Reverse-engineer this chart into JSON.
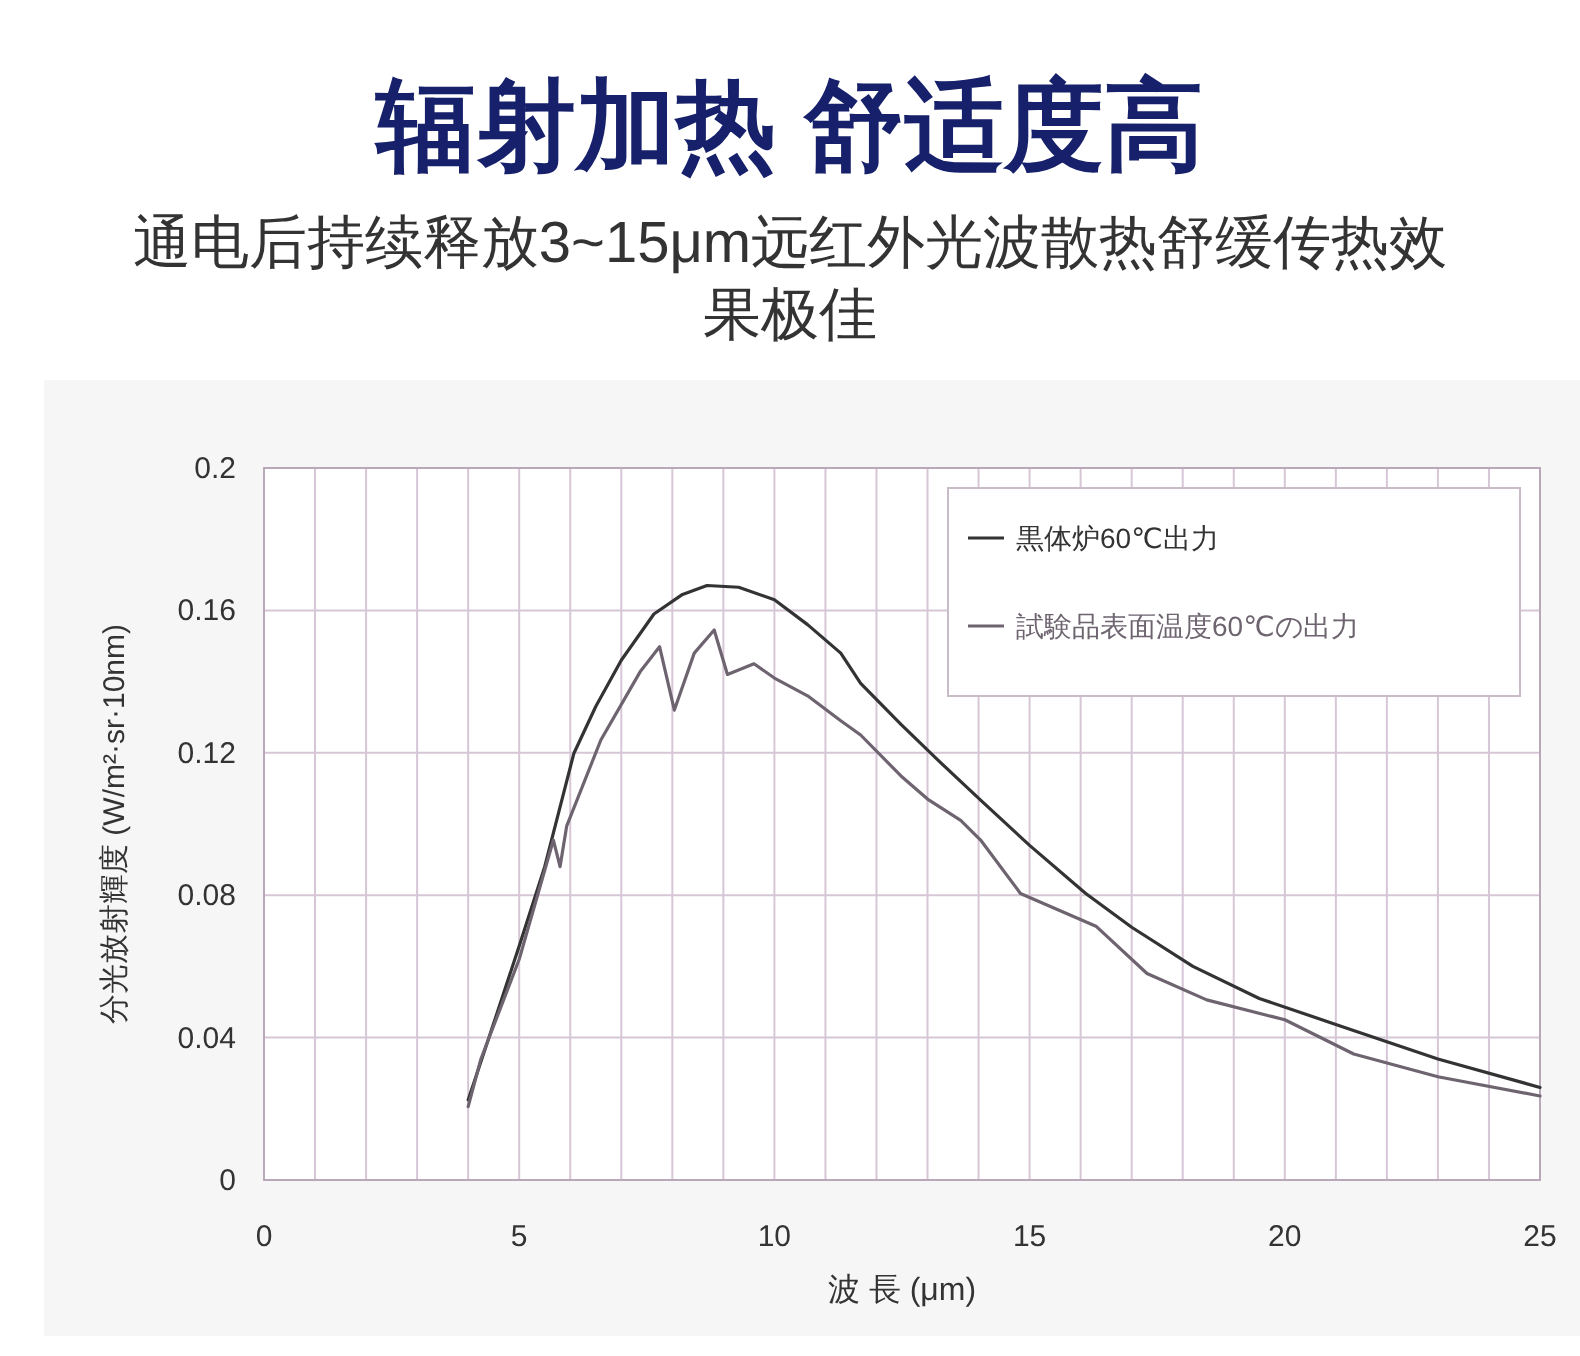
{
  "chart_data": {
    "type": "line",
    "title": "辐射加热 舒适度高",
    "subtitle": "通电后持续释放3~15μm远红外光波散热舒缓传热效果极佳",
    "xlabel": "波 長 (μm)",
    "ylabel": "分光放射輝度 (W/m²·sr·10nm)",
    "xlim": [
      0,
      25
    ],
    "ylim": [
      0,
      0.2
    ],
    "xticks": [
      0,
      {
        "value": 1,
        "label": null
      },
      {
        "value": 2,
        "label": null
      },
      {
        "value": 3,
        "label": null
      },
      {
        "value": 4,
        "label": null
      },
      5,
      {
        "value": 6,
        "label": null
      },
      {
        "value": 7,
        "label": null
      },
      {
        "value": 8,
        "label": null
      },
      {
        "value": 9,
        "label": null
      },
      10,
      {
        "value": 11,
        "label": null
      },
      {
        "value": 12,
        "label": null
      },
      {
        "value": 13,
        "label": null
      },
      {
        "value": 14,
        "label": null
      },
      15,
      {
        "value": 16,
        "label": null
      },
      {
        "value": 17,
        "label": null
      },
      {
        "value": 18,
        "label": null
      },
      {
        "value": 19,
        "label": null
      },
      20,
      {
        "value": 21,
        "label": null
      },
      {
        "value": 22,
        "label": null
      },
      {
        "value": 23,
        "label": null
      },
      {
        "value": 24,
        "label": null
      },
      25
    ],
    "yticks": [
      0,
      0.04,
      0.08,
      0.12,
      0.16,
      0.2
    ],
    "grid": true,
    "legend": "top right",
    "line_style": "solid",
    "marker": "none",
    "series": [
      {
        "name": "黒体炉60℃出力",
        "color": "#333333",
        "x": [
          4,
          4.5,
          5,
          5.5,
          6.07,
          6.5,
          7,
          7.64,
          8.2,
          8.68,
          9.3,
          10,
          10.65,
          11.3,
          11.69,
          12.48,
          13.2,
          14.04,
          15,
          16.1,
          17,
          18.2,
          19.5,
          21.1,
          23,
          25
        ],
        "values": [
          0.0225,
          0.044,
          0.0657,
          0.088,
          0.1198,
          0.133,
          0.146,
          0.159,
          0.1645,
          0.167,
          0.1665,
          0.163,
          0.156,
          0.148,
          0.1395,
          0.128,
          0.118,
          0.1067,
          0.094,
          0.0805,
          0.071,
          0.06,
          0.051,
          0.0432,
          0.034,
          0.026
        ]
      },
      {
        "name": "試験品表面温度60℃の出力",
        "color": "#6e6470",
        "x": [
          4,
          4.25,
          5,
          5.67,
          5.8,
          5.93,
          6.6,
          7.38,
          7.75,
          8.04,
          8.43,
          8.82,
          9.08,
          9.6,
          10,
          10.65,
          11.3,
          11.69,
          12.48,
          13,
          13.65,
          14.04,
          14.82,
          16.3,
          17.3,
          18.47,
          20,
          21.35,
          23,
          25
        ],
        "values": [
          0.0206,
          0.034,
          0.062,
          0.0955,
          0.088,
          0.0994,
          0.1236,
          0.143,
          0.1498,
          0.132,
          0.148,
          0.1545,
          0.142,
          0.145,
          0.141,
          0.136,
          0.129,
          0.125,
          0.1135,
          0.107,
          0.101,
          0.0955,
          0.0805,
          0.0713,
          0.058,
          0.0506,
          0.045,
          0.0354,
          0.029,
          0.0236
        ]
      }
    ]
  }
}
